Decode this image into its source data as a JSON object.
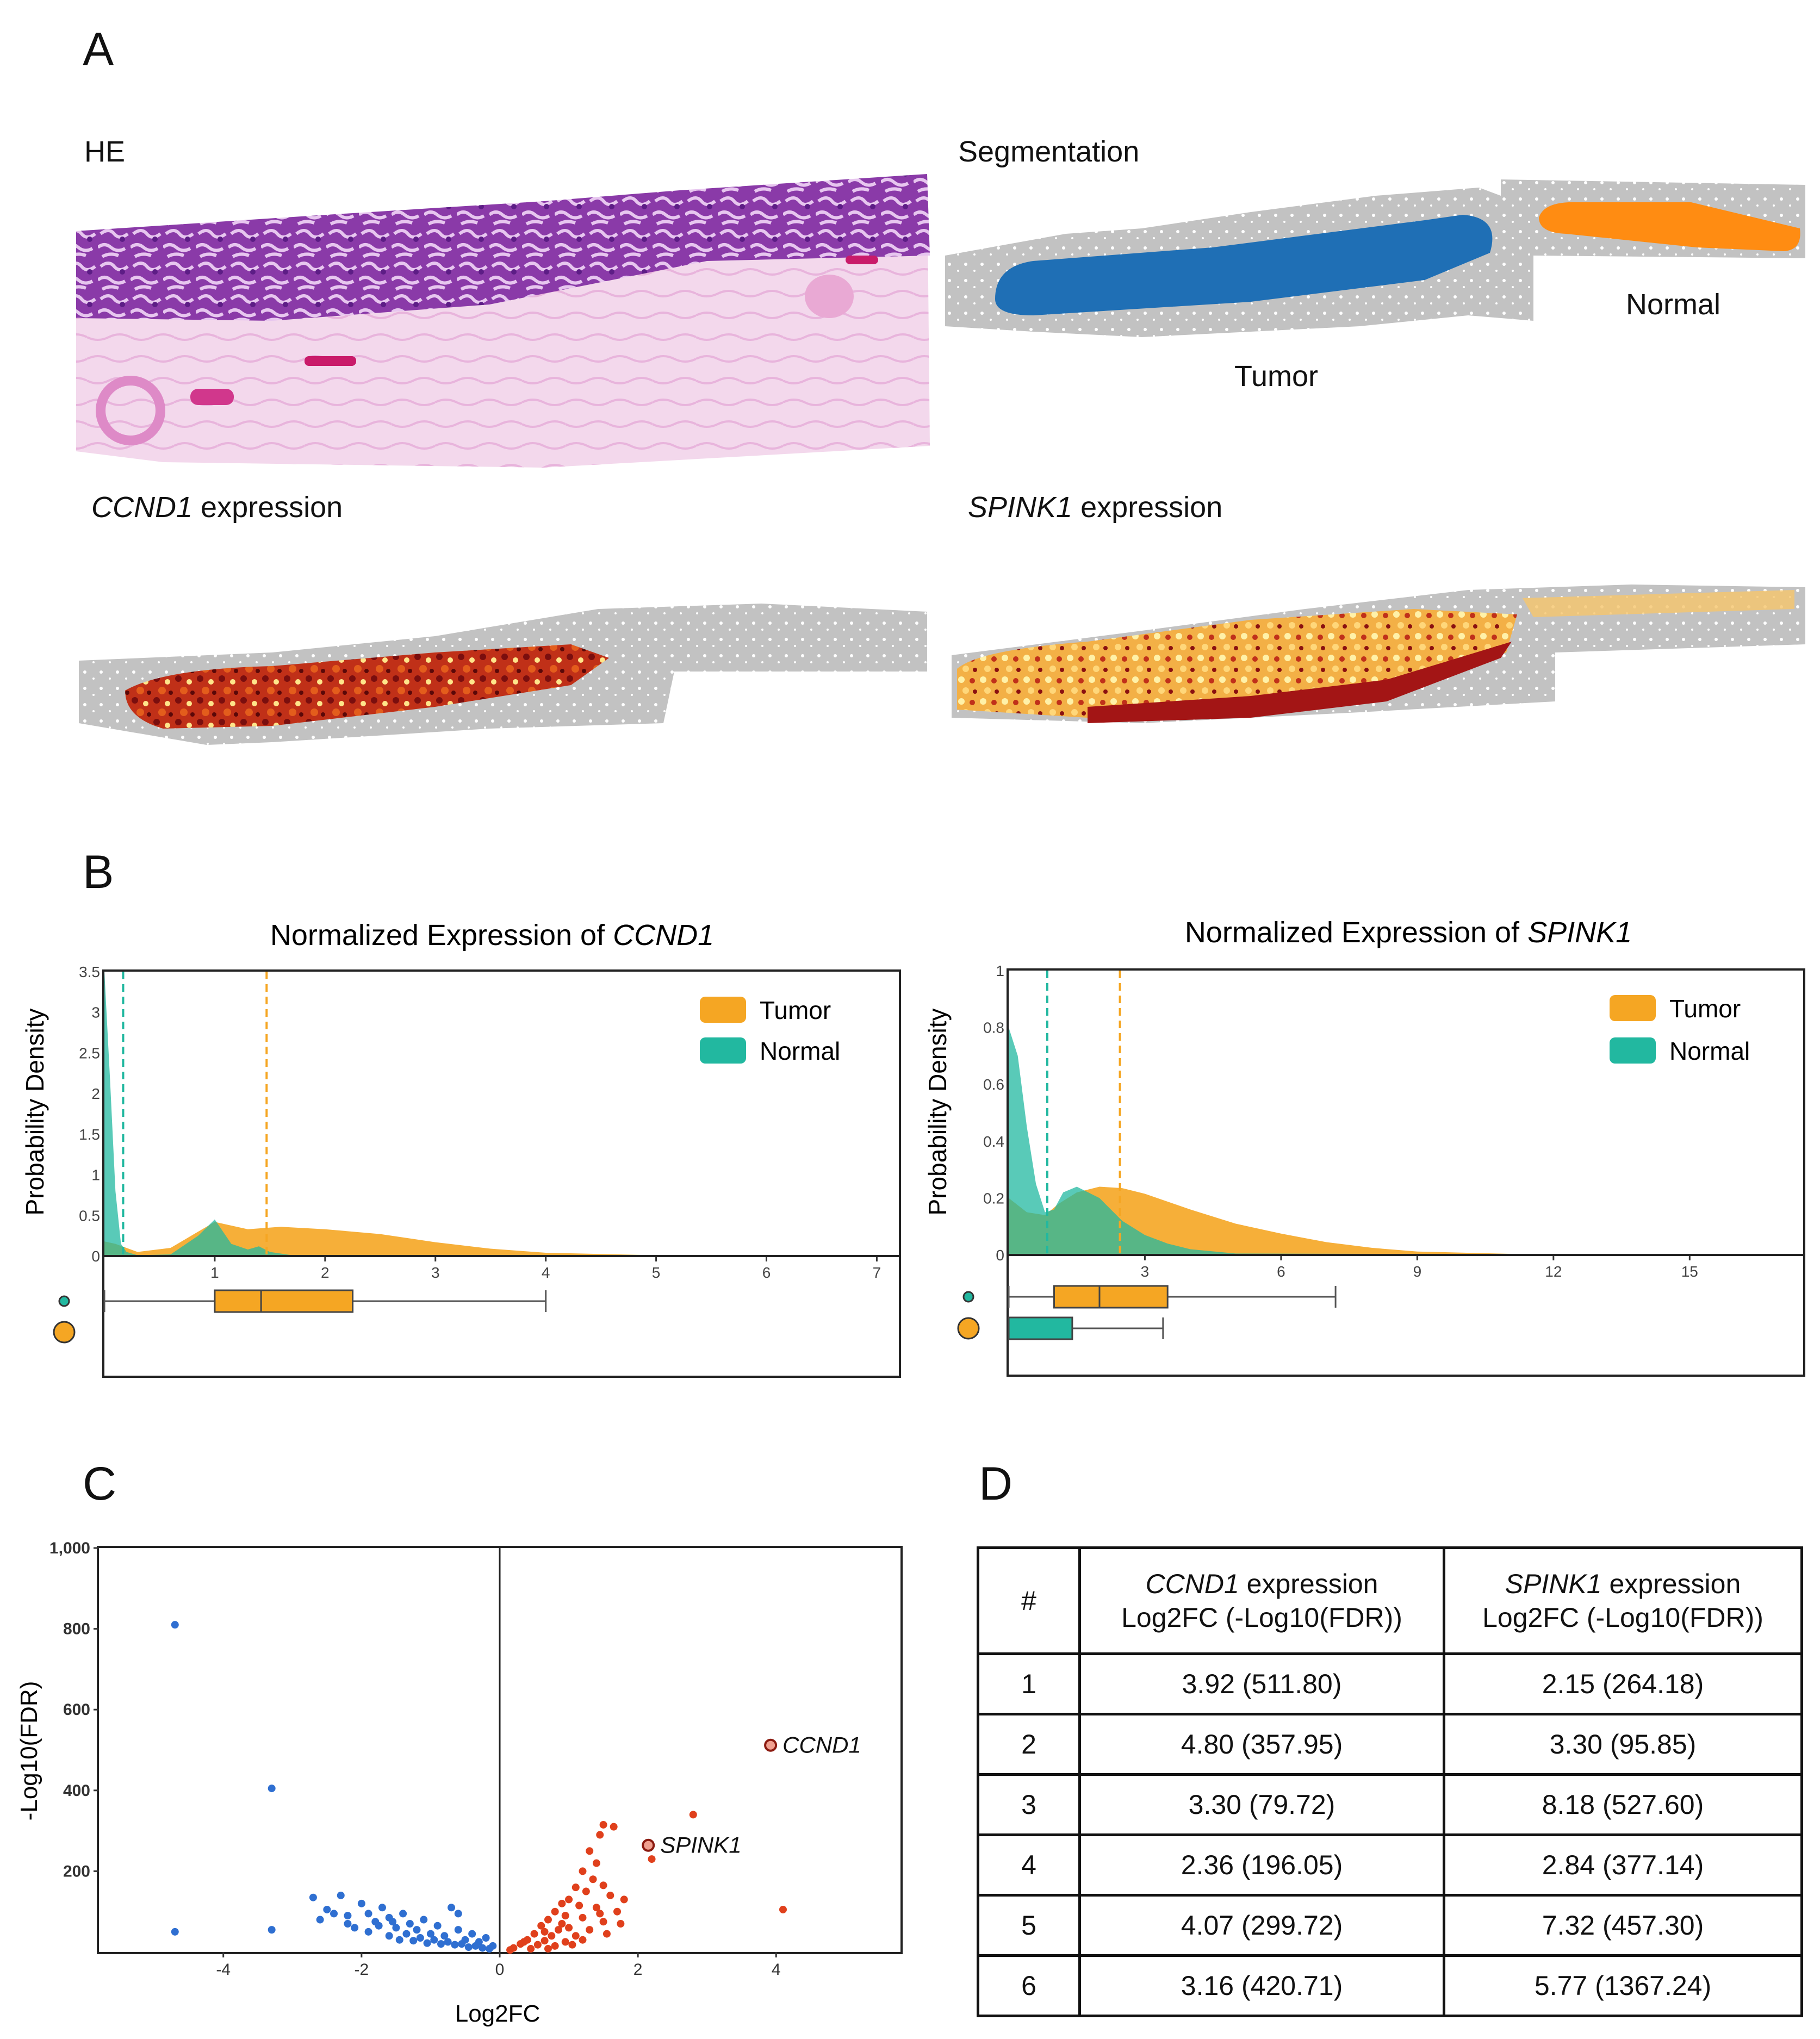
{
  "panels": {
    "a": "A",
    "b": "B",
    "c": "C",
    "d": "D"
  },
  "panel_a": {
    "he_label": "HE",
    "seg_label": "Segmentation",
    "tumor_label": "Tumor",
    "normal_label": "Normal",
    "ccnd1_gene": "CCND1",
    "spink1_gene": "SPINK1",
    "expression_word": " expression",
    "colors": {
      "tumor_region": "#1f6fb5",
      "normal_region": "#ff8c12",
      "tissue_gray": "#c4c4c4"
    }
  },
  "panel_b": {
    "title_prefix": "Normalized Expression of ",
    "ylabel": "Probability Density",
    "legend": [
      "Tumor",
      "Normal"
    ],
    "colors": {
      "tumor": "#f5a623",
      "normal": "#22b8a0"
    }
  },
  "panel_c": {
    "ccnd1_label": "CCND1",
    "spink1_label": "SPINK1"
  },
  "panel_d": {
    "header_num": "#",
    "header_suffix": " expression",
    "header_line2": "Log2FC (-Log10(FDR))",
    "rows": [
      {
        "n": "1",
        "ccnd1": "3.92 (511.80)",
        "spink1": "2.15 (264.18)"
      },
      {
        "n": "2",
        "ccnd1": "4.80 (357.95)",
        "spink1": "3.30 (95.85)"
      },
      {
        "n": "3",
        "ccnd1": "3.30 (79.72)",
        "spink1": "8.18 (527.60)"
      },
      {
        "n": "4",
        "ccnd1": "2.36 (196.05)",
        "spink1": "2.84 (377.14)"
      },
      {
        "n": "5",
        "ccnd1": "4.07 (299.72)",
        "spink1": "7.32 (457.30)"
      },
      {
        "n": "6",
        "ccnd1": "3.16 (420.71)",
        "spink1": "5.77 (1367.24)"
      }
    ]
  },
  "chart_data": [
    {
      "type": "area",
      "panel": "B-left",
      "title": "Normalized Expression of CCND1",
      "ylabel": "Probability Density",
      "xlim": [
        0,
        7.2
      ],
      "ylim": [
        0,
        3.5
      ],
      "xticks": [
        1,
        2,
        3,
        4,
        5,
        6,
        7
      ],
      "yticks": [
        0,
        0.5,
        1,
        1.5,
        2,
        2.5,
        3,
        3.5
      ],
      "ytick_labels": [
        "0",
        "0.5",
        "1",
        "1.5",
        "2",
        "2.5",
        "3",
        "3.5"
      ],
      "legend_position": "top-right",
      "series": [
        {
          "name": "Tumor",
          "x": [
            0,
            0.1,
            0.3,
            0.6,
            0.85,
            1.0,
            1.3,
            1.6,
            2.0,
            2.5,
            3.0,
            3.5,
            4.0,
            5.0,
            6.0,
            7.2
          ],
          "y": [
            0.18,
            0.15,
            0.05,
            0.1,
            0.3,
            0.42,
            0.33,
            0.36,
            0.33,
            0.27,
            0.17,
            0.09,
            0.04,
            0.01,
            0.003,
            0
          ],
          "mean": 1.47,
          "box": {
            "whisker_low": 0,
            "q1": 1.0,
            "median": 1.42,
            "q3": 2.25,
            "whisker_high": 4.0
          }
        },
        {
          "name": "Normal",
          "x": [
            0,
            0.05,
            0.1,
            0.15,
            0.2,
            0.3,
            0.6,
            0.85,
            1.0,
            1.15,
            1.3,
            1.4,
            1.5,
            1.7,
            7.2
          ],
          "y": [
            3.5,
            2.2,
            0.8,
            0.15,
            0.05,
            0.01,
            0.02,
            0.25,
            0.45,
            0.15,
            0.08,
            0.12,
            0.05,
            0.01,
            0
          ],
          "mean": 0.17,
          "box": null
        }
      ]
    },
    {
      "type": "area",
      "panel": "B-right",
      "title": "Normalized Expression of SPINK1",
      "ylabel": "Probability Density",
      "xlim": [
        0,
        17.5
      ],
      "ylim": [
        0,
        1
      ],
      "xticks": [
        3,
        6,
        9,
        12,
        15
      ],
      "yticks": [
        0,
        0.2,
        0.4,
        0.6,
        0.8,
        1
      ],
      "ytick_labels": [
        "0",
        "0.2",
        "0.4",
        "0.6",
        "0.8",
        "1"
      ],
      "legend_position": "top-right",
      "series": [
        {
          "name": "Tumor",
          "x": [
            0,
            0.4,
            0.8,
            1.1,
            1.5,
            2.0,
            2.5,
            3.0,
            4.0,
            5.0,
            6.0,
            7.0,
            8.0,
            9.0,
            11.0,
            13.0,
            17.5
          ],
          "y": [
            0.2,
            0.15,
            0.14,
            0.18,
            0.22,
            0.24,
            0.235,
            0.215,
            0.16,
            0.11,
            0.075,
            0.045,
            0.025,
            0.012,
            0.004,
            0.001,
            0
          ],
          "mean": 2.45,
          "box": {
            "whisker_low": 0,
            "q1": 1.0,
            "median": 2.0,
            "q3": 3.5,
            "whisker_high": 7.2
          }
        },
        {
          "name": "Normal",
          "x": [
            0,
            0.2,
            0.4,
            0.6,
            0.8,
            1.0,
            1.2,
            1.5,
            2.0,
            2.5,
            3.0,
            3.5,
            4.0,
            5.0,
            17.5
          ],
          "y": [
            0.8,
            0.7,
            0.45,
            0.25,
            0.15,
            0.16,
            0.22,
            0.24,
            0.2,
            0.12,
            0.07,
            0.04,
            0.02,
            0.005,
            0
          ],
          "mean": 0.85,
          "box": {
            "whisker_low": 0,
            "q1": 0,
            "median": 0,
            "q3": 1.4,
            "whisker_high": 3.4
          }
        }
      ]
    },
    {
      "type": "scatter",
      "panel": "C",
      "xlabel": "Log2FC",
      "ylabel": "-Log10(FDR)",
      "xlim": [
        -5.8,
        5.8
      ],
      "ylim": [
        0,
        1000
      ],
      "xticks": [
        -4,
        -2,
        0,
        2,
        4
      ],
      "yticks": [
        200,
        400,
        600,
        800,
        1000
      ],
      "ytick_labels": [
        "200",
        "400",
        "600",
        "800",
        "1,000"
      ],
      "colors": {
        "down": "#2f6fd1",
        "up": "#e0401c",
        "highlight_edge": "#8b1a10"
      },
      "down_points": [
        [
          -4.7,
          810
        ],
        [
          -3.3,
          405
        ],
        [
          -4.7,
          50
        ],
        [
          -3.3,
          55
        ],
        [
          -2.7,
          135
        ],
        [
          -2.5,
          105
        ],
        [
          -2.3,
          140
        ],
        [
          -2.2,
          90
        ],
        [
          -2.0,
          120
        ],
        [
          -1.9,
          95
        ],
        [
          -1.8,
          75
        ],
        [
          -1.7,
          110
        ],
        [
          -1.6,
          85
        ],
        [
          -1.5,
          60
        ],
        [
          -1.4,
          95
        ],
        [
          -1.3,
          70
        ],
        [
          -1.2,
          55
        ],
        [
          -1.1,
          80
        ],
        [
          -1.0,
          45
        ],
        [
          -0.9,
          65
        ],
        [
          -0.8,
          40
        ],
        [
          -0.7,
          110
        ],
        [
          -0.6,
          55
        ],
        [
          -0.5,
          30
        ],
        [
          -0.4,
          45
        ],
        [
          -0.3,
          25
        ],
        [
          -0.2,
          35
        ],
        [
          -0.1,
          15
        ],
        [
          -2.6,
          80
        ],
        [
          -2.1,
          60
        ],
        [
          -1.9,
          50
        ],
        [
          -1.6,
          40
        ],
        [
          -1.45,
          30
        ],
        [
          -1.25,
          28
        ],
        [
          -1.05,
          22
        ],
        [
          -0.85,
          20
        ],
        [
          -0.65,
          18
        ],
        [
          -0.45,
          12
        ],
        [
          -0.25,
          10
        ],
        [
          -1.75,
          65
        ],
        [
          -1.35,
          45
        ],
        [
          -1.15,
          35
        ],
        [
          -0.95,
          30
        ],
        [
          -0.75,
          25
        ],
        [
          -0.55,
          20
        ],
        [
          -0.35,
          15
        ],
        [
          -0.15,
          8
        ],
        [
          -2.4,
          95
        ],
        [
          -2.2,
          70
        ],
        [
          -1.55,
          75
        ],
        [
          -0.6,
          95
        ]
      ],
      "up_points": [
        [
          4.1,
          105
        ],
        [
          2.8,
          340
        ],
        [
          1.65,
          310
        ],
        [
          1.5,
          315
        ],
        [
          1.45,
          290
        ],
        [
          2.2,
          230
        ],
        [
          1.3,
          250
        ],
        [
          1.4,
          220
        ],
        [
          1.2,
          200
        ],
        [
          1.35,
          180
        ],
        [
          1.5,
          165
        ],
        [
          1.1,
          160
        ],
        [
          1.25,
          150
        ],
        [
          1.6,
          140
        ],
        [
          1.0,
          130
        ],
        [
          0.9,
          120
        ],
        [
          1.15,
          115
        ],
        [
          1.4,
          110
        ],
        [
          0.8,
          100
        ],
        [
          1.7,
          100
        ],
        [
          0.95,
          90
        ],
        [
          1.2,
          85
        ],
        [
          0.7,
          80
        ],
        [
          1.5,
          75
        ],
        [
          0.6,
          65
        ],
        [
          1.0,
          60
        ],
        [
          0.85,
          55
        ],
        [
          1.3,
          55
        ],
        [
          0.5,
          45
        ],
        [
          0.75,
          40
        ],
        [
          1.1,
          40
        ],
        [
          0.4,
          30
        ],
        [
          0.65,
          28
        ],
        [
          0.95,
          25
        ],
        [
          1.2,
          30
        ],
        [
          0.3,
          20
        ],
        [
          0.55,
          18
        ],
        [
          0.8,
          15
        ],
        [
          1.05,
          18
        ],
        [
          0.2,
          10
        ],
        [
          0.45,
          8
        ],
        [
          0.7,
          8
        ],
        [
          0.15,
          5
        ],
        [
          1.55,
          45
        ],
        [
          1.75,
          70
        ],
        [
          1.45,
          95
        ],
        [
          0.9,
          70
        ],
        [
          0.65,
          50
        ],
        [
          0.35,
          25
        ],
        [
          1.8,
          130
        ]
      ],
      "highlighted": [
        {
          "label": "CCND1",
          "x": 3.92,
          "y": 511.8
        },
        {
          "label": "SPINK1",
          "x": 2.15,
          "y": 264.18
        }
      ]
    }
  ]
}
